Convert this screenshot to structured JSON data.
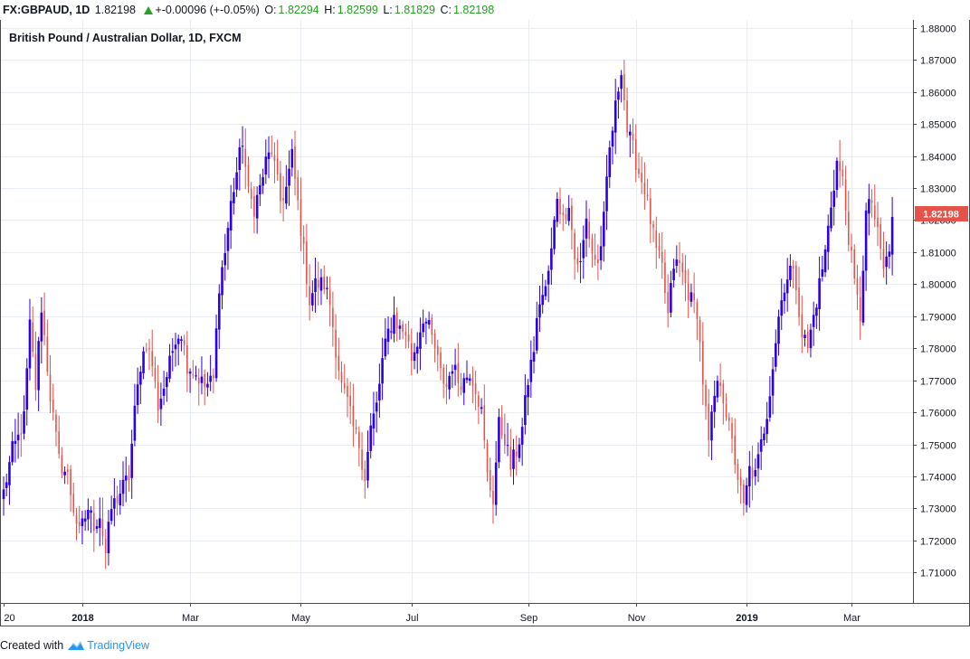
{
  "header": {
    "symbol": "FX:GBPAUD, 1D",
    "last": "1.82198",
    "change": "+-0.00096 (+-0.05%)",
    "o_label": "O:",
    "o_value": "1.82294",
    "h_label": "H:",
    "h_value": "1.82599",
    "l_label": "L:",
    "l_value": "1.81829",
    "c_label": "C:",
    "c_value": "1.82198"
  },
  "footer": {
    "created_with": "Created with",
    "brand": "TradingView"
  },
  "colors": {
    "up": "#2c00e8",
    "down": "#e5524a",
    "grid": "#e8ecf3",
    "axis": "#4a4a4a",
    "price_tag": "#e5524a"
  },
  "chart_data": {
    "type": "candlestick",
    "title": "British Pound / Australian Dollar, 1D, FXCM",
    "ylim": [
      1.7005,
      1.8825
    ],
    "y_ticks": [
      "1.71000",
      "1.72000",
      "1.73000",
      "1.74000",
      "1.75000",
      "1.76000",
      "1.77000",
      "1.78000",
      "1.79000",
      "1.80000",
      "1.81000",
      "1.82000",
      "1.83000",
      "1.84000",
      "1.85000",
      "1.86000",
      "1.87000",
      "1.88000"
    ],
    "x_ticks": [
      {
        "label": "20",
        "index": 0
      },
      {
        "label": "2018",
        "index": 27,
        "bold": true
      },
      {
        "label": "Mar",
        "index": 64
      },
      {
        "label": "May",
        "index": 102
      },
      {
        "label": "Jul",
        "index": 140
      },
      {
        "label": "Sep",
        "index": 180
      },
      {
        "label": "Nov",
        "index": 217
      },
      {
        "label": "2019",
        "index": 255,
        "bold": true
      },
      {
        "label": "Mar",
        "index": 291
      }
    ],
    "last_price": "1.82198",
    "grid": true,
    "keypoints": [
      [
        0,
        1.735
      ],
      [
        3,
        1.748
      ],
      [
        5,
        1.752
      ],
      [
        7,
        1.758
      ],
      [
        9,
        1.787
      ],
      [
        11,
        1.768
      ],
      [
        13,
        1.793
      ],
      [
        16,
        1.765
      ],
      [
        19,
        1.745
      ],
      [
        22,
        1.74
      ],
      [
        24,
        1.73
      ],
      [
        26,
        1.722
      ],
      [
        29,
        1.73
      ],
      [
        31,
        1.725
      ],
      [
        33,
        1.728
      ],
      [
        35,
        1.716
      ],
      [
        37,
        1.73
      ],
      [
        40,
        1.735
      ],
      [
        43,
        1.74
      ],
      [
        45,
        1.76
      ],
      [
        47,
        1.775
      ],
      [
        49,
        1.782
      ],
      [
        51,
        1.775
      ],
      [
        53,
        1.762
      ],
      [
        55,
        1.768
      ],
      [
        57,
        1.775
      ],
      [
        59,
        1.784
      ],
      [
        61,
        1.785
      ],
      [
        63,
        1.775
      ],
      [
        66,
        1.772
      ],
      [
        69,
        1.768
      ],
      [
        72,
        1.77
      ],
      [
        74,
        1.8
      ],
      [
        76,
        1.81
      ],
      [
        78,
        1.825
      ],
      [
        80,
        1.835
      ],
      [
        82,
        1.845
      ],
      [
        84,
        1.828
      ],
      [
        86,
        1.824
      ],
      [
        88,
        1.83
      ],
      [
        90,
        1.838
      ],
      [
        92,
        1.842
      ],
      [
        95,
        1.826
      ],
      [
        97,
        1.83
      ],
      [
        99,
        1.84
      ],
      [
        101,
        1.825
      ],
      [
        103,
        1.81
      ],
      [
        105,
        1.795
      ],
      [
        107,
        1.8
      ],
      [
        110,
        1.8
      ],
      [
        112,
        1.794
      ],
      [
        114,
        1.78
      ],
      [
        116,
        1.768
      ],
      [
        118,
        1.763
      ],
      [
        120,
        1.755
      ],
      [
        122,
        1.75
      ],
      [
        124,
        1.74
      ],
      [
        126,
        1.755
      ],
      [
        128,
        1.762
      ],
      [
        130,
        1.776
      ],
      [
        132,
        1.785
      ],
      [
        134,
        1.79
      ],
      [
        136,
        1.786
      ],
      [
        138,
        1.785
      ],
      [
        140,
        1.777
      ],
      [
        142,
        1.782
      ],
      [
        144,
        1.79
      ],
      [
        146,
        1.786
      ],
      [
        148,
        1.78
      ],
      [
        150,
        1.772
      ],
      [
        152,
        1.768
      ],
      [
        154,
        1.775
      ],
      [
        156,
        1.77
      ],
      [
        158,
        1.77
      ],
      [
        160,
        1.773
      ],
      [
        162,
        1.768
      ],
      [
        164,
        1.76
      ],
      [
        166,
        1.74
      ],
      [
        168,
        1.733
      ],
      [
        170,
        1.756
      ],
      [
        172,
        1.752
      ],
      [
        174,
        1.743
      ],
      [
        176,
        1.748
      ],
      [
        178,
        1.755
      ],
      [
        180,
        1.77
      ],
      [
        182,
        1.78
      ],
      [
        184,
        1.795
      ],
      [
        186,
        1.798
      ],
      [
        188,
        1.81
      ],
      [
        190,
        1.828
      ],
      [
        192,
        1.82
      ],
      [
        194,
        1.826
      ],
      [
        196,
        1.808
      ],
      [
        198,
        1.806
      ],
      [
        200,
        1.82
      ],
      [
        202,
        1.81
      ],
      [
        204,
        1.806
      ],
      [
        206,
        1.82
      ],
      [
        208,
        1.842
      ],
      [
        210,
        1.855
      ],
      [
        212,
        1.868
      ],
      [
        214,
        1.848
      ],
      [
        216,
        1.842
      ],
      [
        218,
        1.835
      ],
      [
        220,
        1.83
      ],
      [
        222,
        1.82
      ],
      [
        224,
        1.81
      ],
      [
        226,
        1.805
      ],
      [
        228,
        1.79
      ],
      [
        230,
        1.806
      ],
      [
        232,
        1.806
      ],
      [
        234,
        1.8
      ],
      [
        236,
        1.795
      ],
      [
        238,
        1.792
      ],
      [
        240,
        1.77
      ],
      [
        242,
        1.75
      ],
      [
        244,
        1.765
      ],
      [
        246,
        1.77
      ],
      [
        248,
        1.76
      ],
      [
        250,
        1.75
      ],
      [
        252,
        1.74
      ],
      [
        254,
        1.73
      ],
      [
        256,
        1.742
      ],
      [
        258,
        1.74
      ],
      [
        260,
        1.75
      ],
      [
        262,
        1.76
      ],
      [
        264,
        1.775
      ],
      [
        266,
        1.79
      ],
      [
        268,
        1.8
      ],
      [
        270,
        1.805
      ],
      [
        272,
        1.8
      ],
      [
        274,
        1.785
      ],
      [
        276,
        1.78
      ],
      [
        278,
        1.79
      ],
      [
        280,
        1.8
      ],
      [
        282,
        1.81
      ],
      [
        284,
        1.825
      ],
      [
        286,
        1.838
      ],
      [
        288,
        1.832
      ],
      [
        290,
        1.815
      ],
      [
        292,
        1.8
      ],
      [
        294,
        1.79
      ],
      [
        296,
        1.822
      ],
      [
        298,
        1.826
      ],
      [
        300,
        1.815
      ],
      [
        302,
        1.805
      ],
      [
        304,
        1.81
      ],
      [
        305,
        1.821
      ]
    ]
  }
}
